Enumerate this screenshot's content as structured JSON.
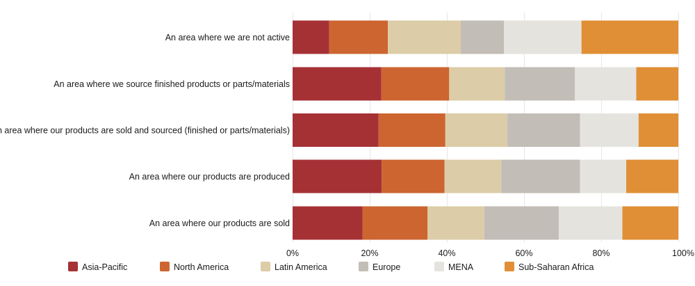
{
  "chart_data": {
    "type": "bar",
    "orientation": "horizontal",
    "stacked": "percent",
    "title": "",
    "xlabel": "",
    "ylabel": "",
    "xlim": [
      0,
      100
    ],
    "x_ticks": [
      "0%",
      "20%",
      "40%",
      "60%",
      "80%",
      "100%"
    ],
    "grid": true,
    "legend_position": "bottom",
    "categories": [
      "An area where we are not active",
      "An area where we source finished products or parts/materials",
      "An area where our products are sold and sourced (finished or parts/materials)",
      "An area where our products are produced",
      "An area where our products are sold"
    ],
    "series": [
      {
        "name": "Asia-Pacific",
        "color": "#a63135",
        "values": [
          9.5,
          23.0,
          22.3,
          23.1,
          18.1
        ]
      },
      {
        "name": "North America",
        "color": "#cc6530",
        "values": [
          15.2,
          17.6,
          17.3,
          16.3,
          16.9
        ]
      },
      {
        "name": "Latin America",
        "color": "#dccca7",
        "values": [
          18.9,
          14.4,
          16.1,
          14.7,
          14.7
        ]
      },
      {
        "name": "Europe",
        "color": "#c2bdb6",
        "values": [
          11.2,
          18.2,
          18.8,
          20.4,
          19.3
        ]
      },
      {
        "name": "MENA",
        "color": "#e5e3de",
        "values": [
          20.1,
          15.9,
          15.2,
          12.0,
          16.5
        ]
      },
      {
        "name": "Sub-Saharan Africa",
        "color": "#e08f36",
        "values": [
          25.1,
          10.9,
          10.3,
          13.5,
          14.5
        ]
      }
    ]
  }
}
